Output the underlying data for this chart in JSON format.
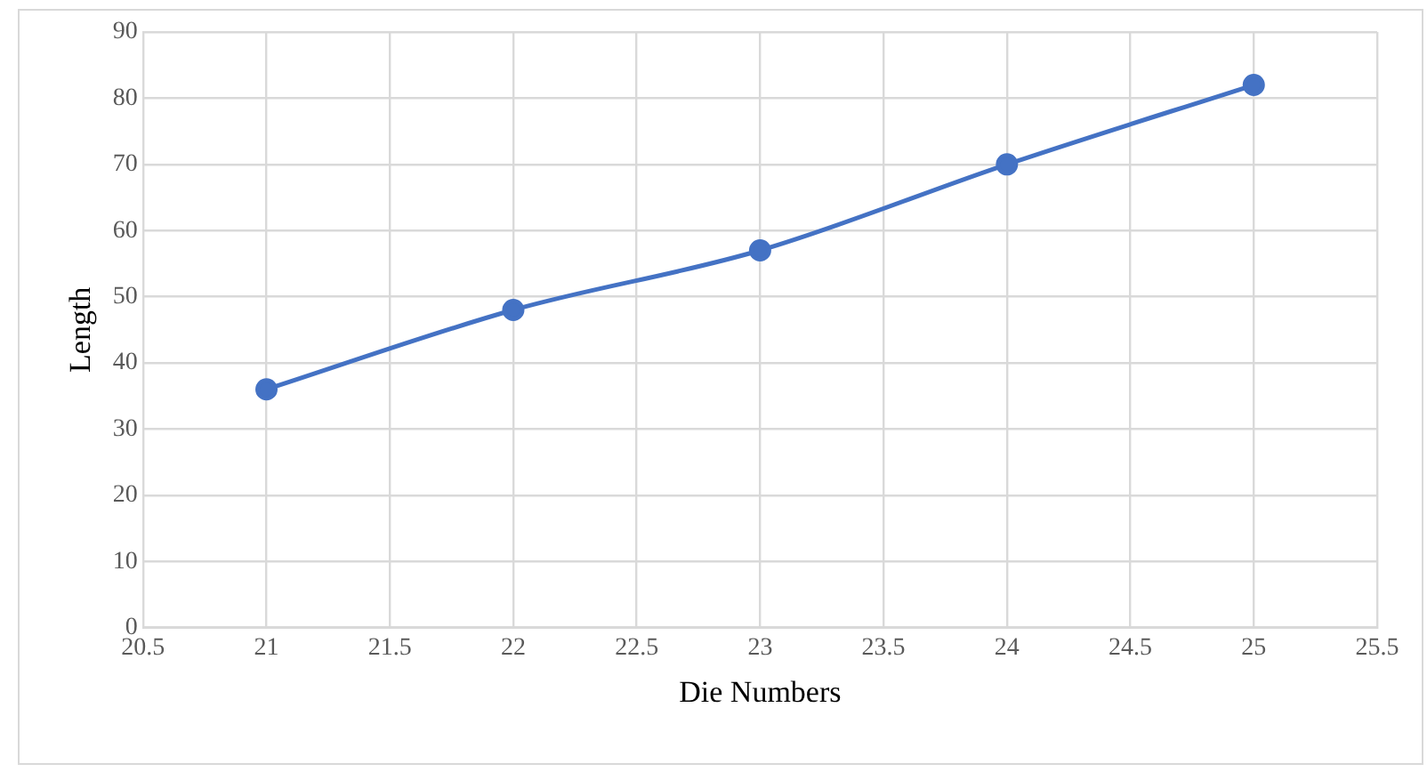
{
  "chart_data": {
    "type": "line",
    "xlabel": "Die Numbers",
    "ylabel": "Length",
    "x": [
      21,
      22,
      23,
      24,
      25
    ],
    "series": [
      {
        "color": "#4472c4",
        "values": [
          36,
          48,
          57,
          70,
          82
        ]
      }
    ],
    "xlim": [
      20.5,
      25.5
    ],
    "xticks": [
      20.5,
      21,
      21.5,
      22,
      22.5,
      23,
      23.5,
      24,
      24.5,
      25,
      25.5
    ],
    "ylim": [
      0,
      90
    ],
    "yticks": [
      0,
      10,
      20,
      30,
      40,
      50,
      60,
      70,
      80,
      90
    ],
    "grid": true,
    "legend": false,
    "marker": "circle",
    "line_style": "solid"
  }
}
